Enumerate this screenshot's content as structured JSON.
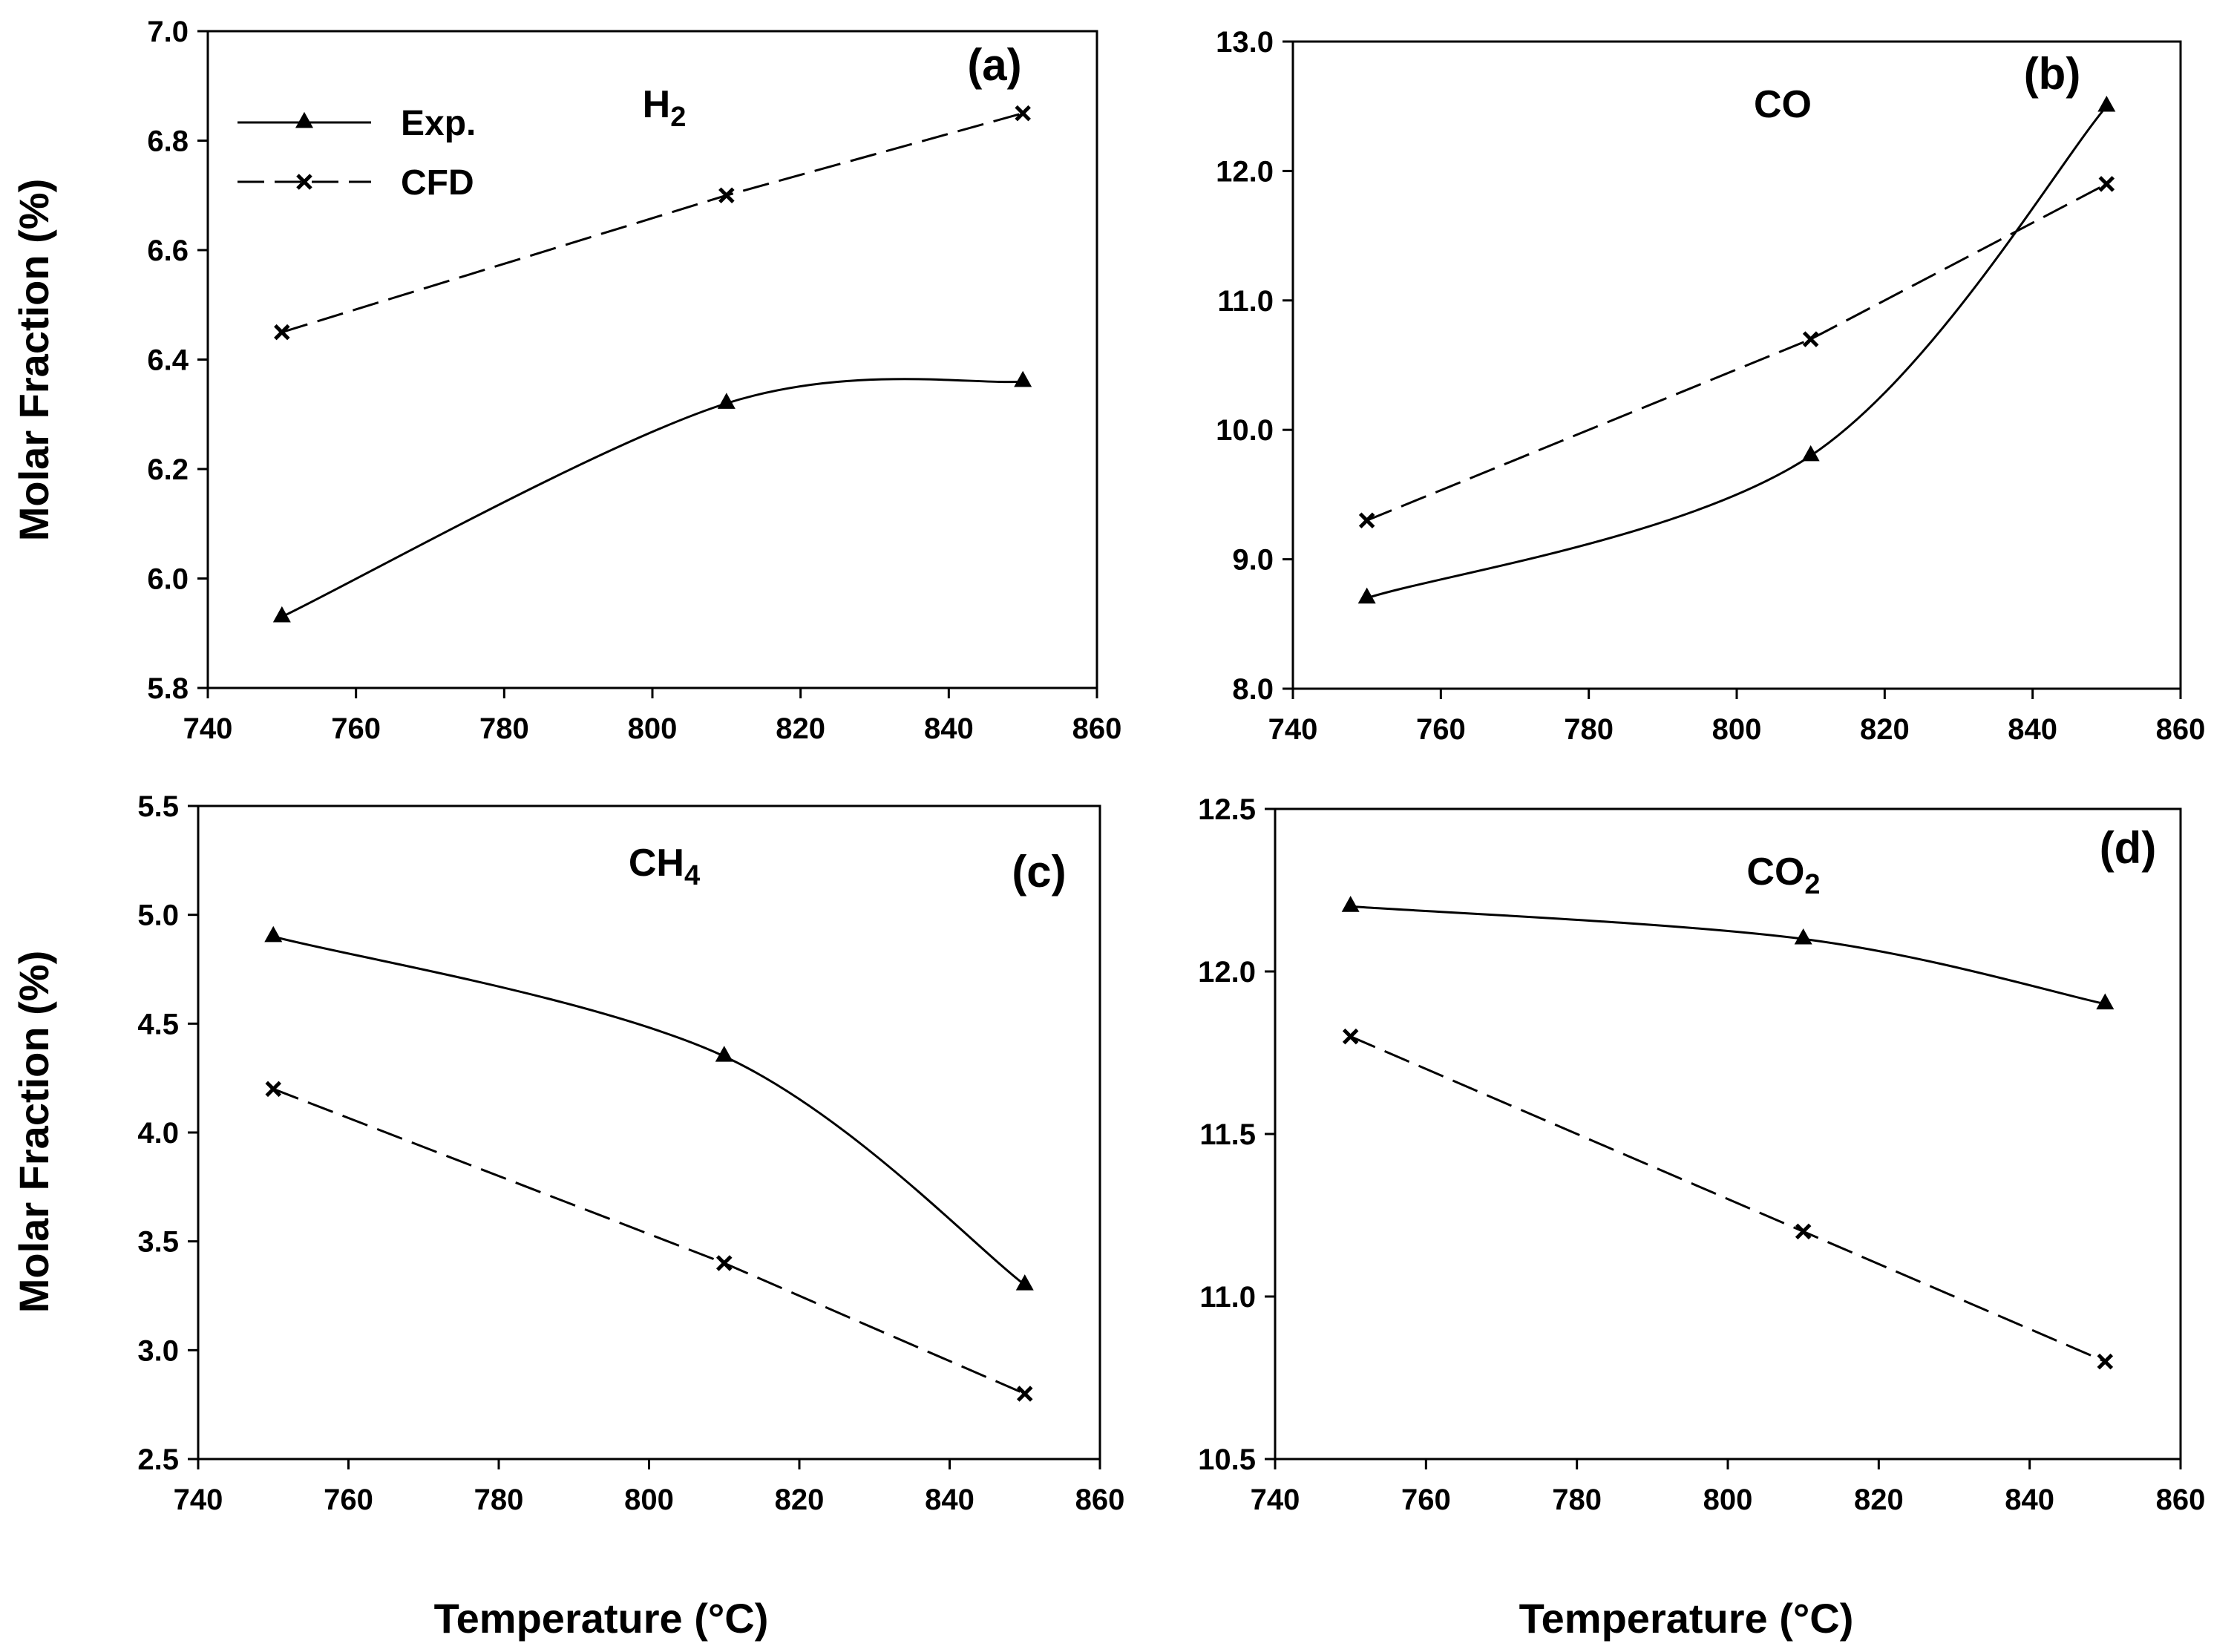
{
  "chart_data": [
    {
      "type": "line",
      "panel_label": "(a)",
      "species": {
        "main": "H",
        "sub": "2"
      },
      "xlim": [
        740,
        860
      ],
      "ylim": [
        5.8,
        7.0
      ],
      "xticks": [
        740,
        760,
        780,
        800,
        820,
        840,
        860
      ],
      "yticks": [
        5.8,
        6.0,
        6.2,
        6.4,
        6.6,
        6.8,
        7.0
      ],
      "ytick_labels": [
        "5.8",
        "6.0",
        "6.2",
        "6.4",
        "6.6",
        "6.8",
        "7.0"
      ],
      "ylabel": "Molar Fraction (%)",
      "xlabel": "",
      "series": [
        {
          "name": "Exp.",
          "marker": "triangle",
          "style": "solid",
          "x": [
            750,
            810,
            850
          ],
          "y": [
            5.93,
            6.32,
            6.36
          ]
        },
        {
          "name": "CFD",
          "marker": "x",
          "style": "dashed",
          "x": [
            750,
            810,
            850
          ],
          "y": [
            6.45,
            6.7,
            6.85
          ]
        }
      ]
    },
    {
      "type": "line",
      "panel_label": "(b)",
      "species": {
        "main": "CO",
        "sub": ""
      },
      "xlim": [
        740,
        860
      ],
      "ylim": [
        8.0,
        13.0
      ],
      "xticks": [
        740,
        760,
        780,
        800,
        820,
        840,
        860
      ],
      "yticks": [
        8,
        9,
        10,
        11,
        12,
        13
      ],
      "ytick_labels": [
        "8.0",
        "9.0",
        "10.0",
        "11.0",
        "12.0",
        "13.0"
      ],
      "ylabel": "",
      "xlabel": "",
      "series": [
        {
          "name": "Exp.",
          "marker": "triangle",
          "style": "solid",
          "x": [
            750,
            810,
            850
          ],
          "y": [
            8.7,
            9.8,
            12.5
          ]
        },
        {
          "name": "CFD",
          "marker": "x",
          "style": "dashed",
          "x": [
            750,
            810,
            850
          ],
          "y": [
            9.3,
            10.7,
            11.9
          ]
        }
      ]
    },
    {
      "type": "line",
      "panel_label": "(c)",
      "species": {
        "main": "CH",
        "sub": "4"
      },
      "xlim": [
        740,
        860
      ],
      "ylim": [
        2.5,
        5.5
      ],
      "xticks": [
        740,
        760,
        780,
        800,
        820,
        840,
        860
      ],
      "yticks": [
        2.5,
        3.0,
        3.5,
        4.0,
        4.5,
        5.0,
        5.5
      ],
      "ytick_labels": [
        "2.5",
        "3.0",
        "3.5",
        "4.0",
        "4.5",
        "5.0",
        "5.5"
      ],
      "ylabel": "Molar Fraction (%)",
      "xlabel": "Temperature (°C)",
      "series": [
        {
          "name": "Exp.",
          "marker": "triangle",
          "style": "solid",
          "x": [
            750,
            810,
            850
          ],
          "y": [
            4.9,
            4.35,
            3.3
          ]
        },
        {
          "name": "CFD",
          "marker": "x",
          "style": "dashed",
          "x": [
            750,
            810,
            850
          ],
          "y": [
            4.2,
            3.4,
            2.8
          ]
        }
      ]
    },
    {
      "type": "line",
      "panel_label": "(d)",
      "species": {
        "main": "CO",
        "sub": "2"
      },
      "xlim": [
        740,
        860
      ],
      "ylim": [
        10.5,
        12.5
      ],
      "xticks": [
        740,
        760,
        780,
        800,
        820,
        840,
        860
      ],
      "yticks": [
        10.5,
        11.0,
        11.5,
        12.0,
        12.5
      ],
      "ytick_labels": [
        "10.5",
        "11.0",
        "11.5",
        "12.0",
        "12.5"
      ],
      "ylabel": "",
      "xlabel": "Temperature (°C)",
      "series": [
        {
          "name": "Exp.",
          "marker": "triangle",
          "style": "solid",
          "x": [
            750,
            810,
            850
          ],
          "y": [
            12.2,
            12.1,
            11.9
          ]
        },
        {
          "name": "CFD",
          "marker": "x",
          "style": "dashed",
          "x": [
            750,
            810,
            850
          ],
          "y": [
            11.8,
            11.2,
            10.8
          ]
        }
      ]
    }
  ],
  "legend": {
    "placement": "top-left of panel (a)",
    "entries": [
      {
        "label": "Exp.",
        "marker": "triangle",
        "style": "solid"
      },
      {
        "label": "CFD",
        "marker": "x",
        "style": "dashed"
      }
    ]
  },
  "colors": {
    "line": "#000000",
    "background": "#ffffff"
  }
}
